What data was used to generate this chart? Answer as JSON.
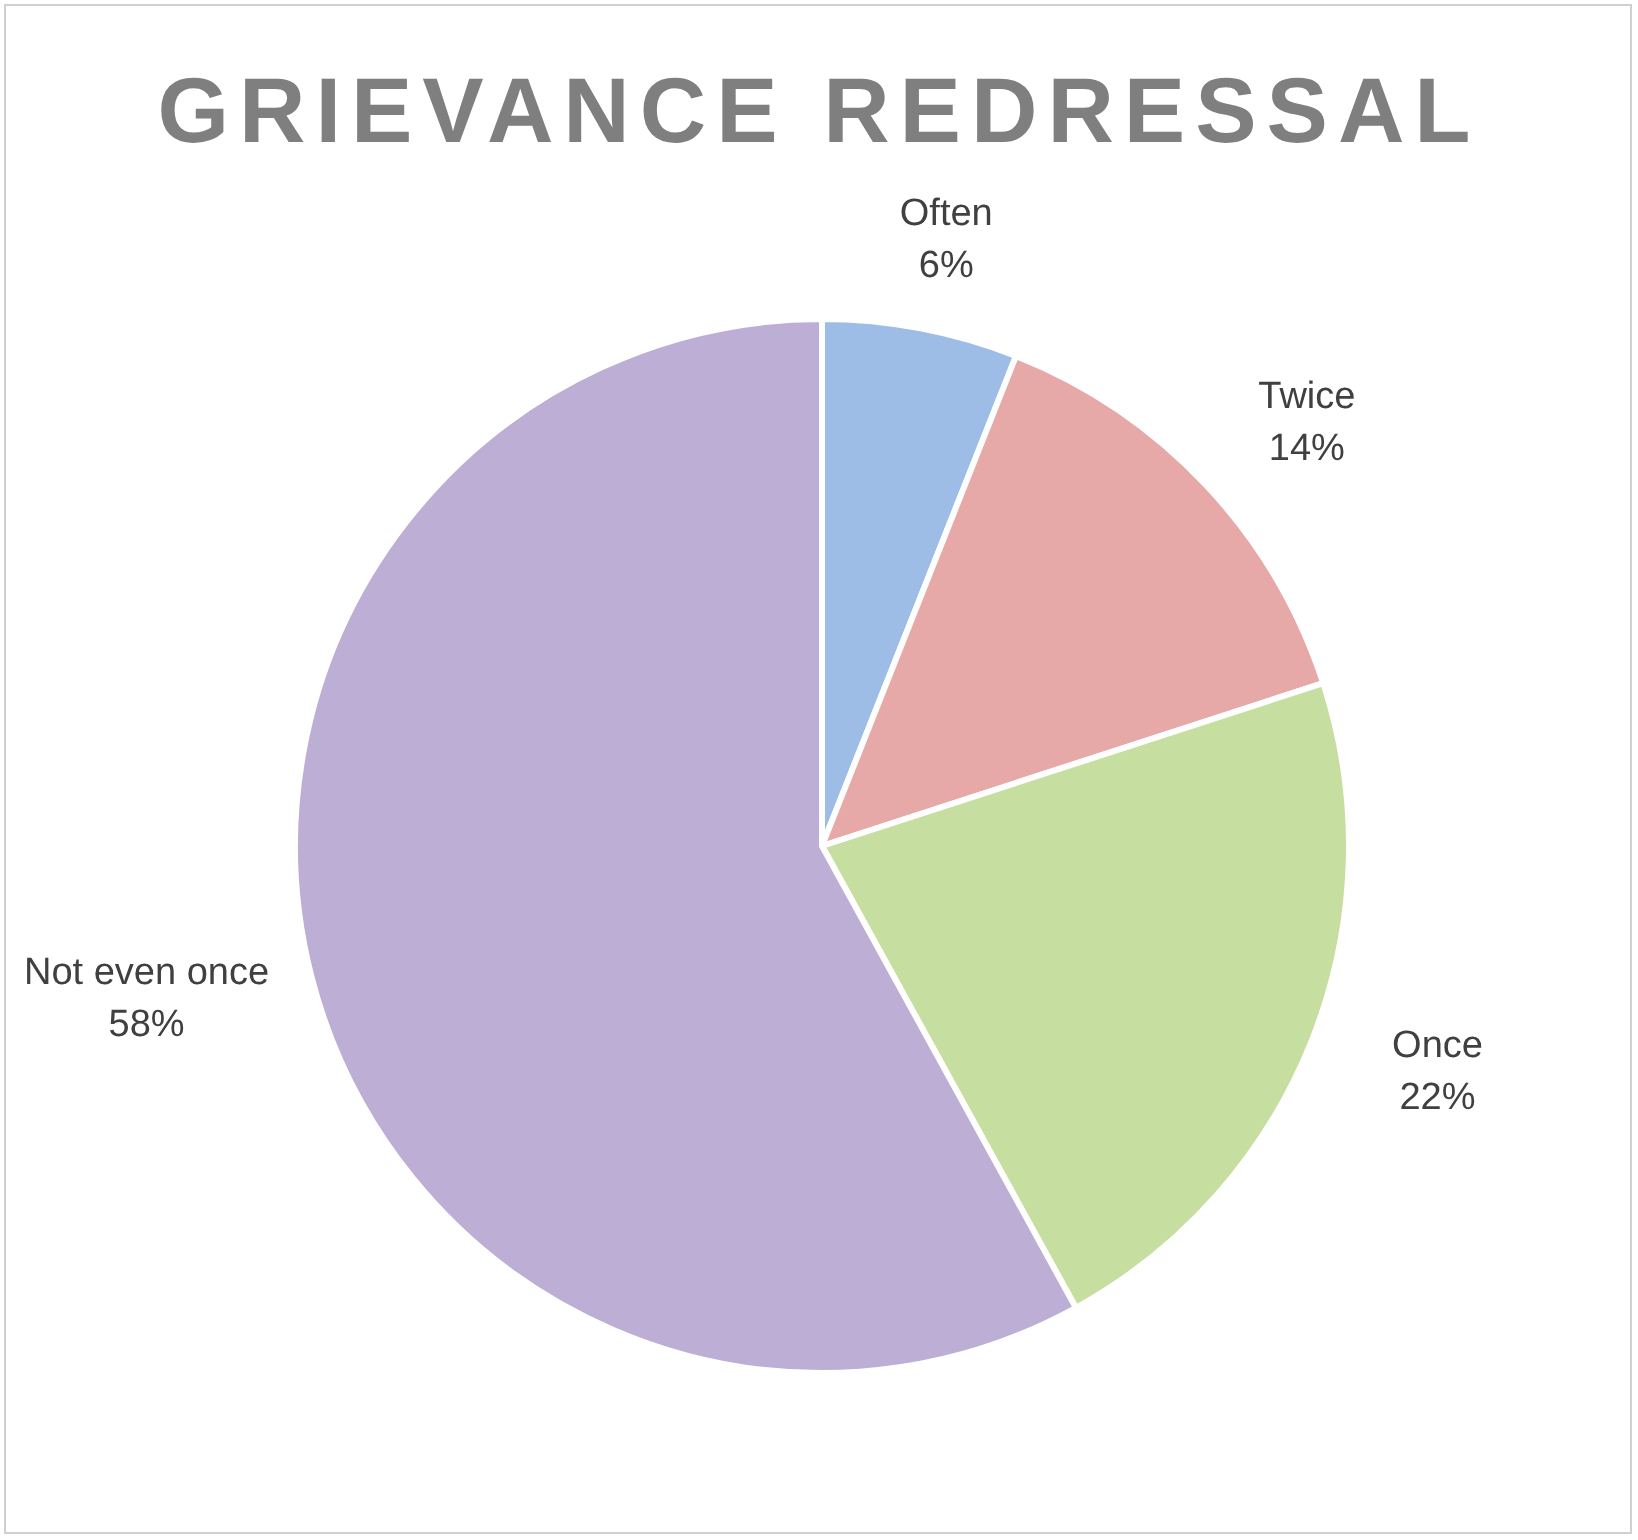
{
  "chart_data": {
    "type": "pie",
    "title": "GRIEVANCE REDRESSAL",
    "categories": [
      "Often",
      "Twice",
      "Once",
      "Not even once"
    ],
    "values": [
      6,
      14,
      22,
      58
    ],
    "value_labels": [
      "6%",
      "14%",
      "22%",
      "58%"
    ],
    "colors": [
      "#9dbde6",
      "#e7a9a7",
      "#c6de9f",
      "#bcaed4"
    ],
    "legend": false
  }
}
